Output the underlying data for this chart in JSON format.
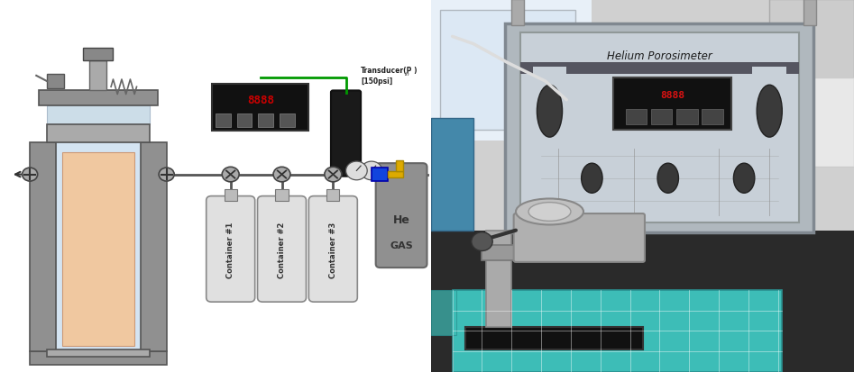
{
  "fig_width": 9.47,
  "fig_height": 4.14,
  "bg_color": "#ffffff",
  "left_panel": {
    "containers": [
      "Container #3",
      "Container #2",
      "Container #1"
    ]
  },
  "right_panel": {
    "mat_color": "#3dbdb7",
    "instrument_title": "Helium Porosimeter"
  },
  "colors": {
    "press_frame": "#909090",
    "press_inner_bg": "#cde0f0",
    "sample": "#f0c8a0",
    "pipe": "#555555",
    "container_body": "#e0e0e0",
    "display_bg": "#111111",
    "display_red": "#cc0000",
    "transducer_body": "#1a1a1a",
    "gas_cylinder": "#909090",
    "green_wire": "#009900",
    "valve_blue": "#1144dd",
    "valve_yellow": "#ddaa00",
    "gauge_color": "#dddddd",
    "white": "#ffffff",
    "dark_grey": "#555555",
    "mid_grey": "#aaaaaa",
    "light_grey": "#d8d8d8"
  }
}
